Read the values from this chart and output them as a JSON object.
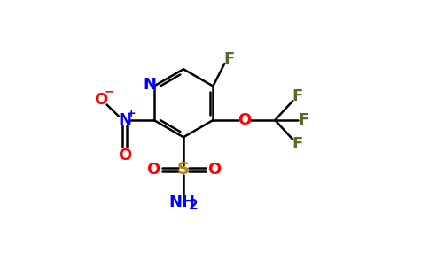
{
  "bg_color": "#ffffff",
  "figsize": [
    4.84,
    3.0
  ],
  "dpi": 100,
  "bond_lw": 1.8,
  "bond_color": "#000000",
  "colors": {
    "N": "#0000ff",
    "O": "#ff0000",
    "S": "#b8860b",
    "F": "#556b2f",
    "C": "#000000"
  },
  "fontsize": 13
}
